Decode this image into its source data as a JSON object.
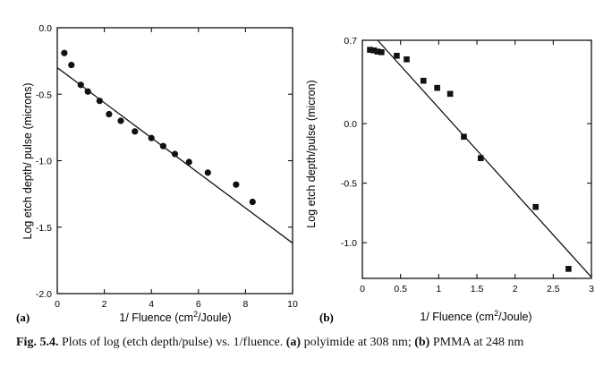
{
  "caption": {
    "fig_label": "Fig. 5.4.",
    "text_1": " Plots of log (etch depth/pulse) vs. 1/fluence. ",
    "label_a": "(a)",
    "text_2": " polyimide at 308 nm; ",
    "label_b": "(b)",
    "text_3": " PMMA at 248 nm"
  },
  "chart_data": [
    {
      "type": "scatter",
      "panel_label": "(a)",
      "xlabel": "1/ Fluence (cm",
      "xlabel_sup": "2",
      "xlabel_tail": "/Joule)",
      "ylabel": "Log etch depth/ pulse (microns)",
      "xlim": [
        0,
        10
      ],
      "ylim": [
        -2.0,
        0.0
      ],
      "x_ticks": [
        0,
        2,
        4,
        6,
        8,
        10
      ],
      "x_tick_labels": [
        "0",
        "2",
        "4",
        "6",
        "8",
        "10"
      ],
      "y_ticks": [
        0.0,
        -0.5,
        -1.0,
        -1.5,
        -2.0
      ],
      "y_tick_labels": [
        "0.0",
        "-0.5",
        "-1.0",
        "-1.5",
        "-2.0"
      ],
      "marker": "circle",
      "grid": false,
      "points": [
        {
          "x": 0.3,
          "y": -0.19
        },
        {
          "x": 0.6,
          "y": -0.28
        },
        {
          "x": 1.0,
          "y": -0.43
        },
        {
          "x": 1.3,
          "y": -0.48
        },
        {
          "x": 1.8,
          "y": -0.55
        },
        {
          "x": 2.2,
          "y": -0.65
        },
        {
          "x": 2.7,
          "y": -0.7
        },
        {
          "x": 3.3,
          "y": -0.78
        },
        {
          "x": 4.0,
          "y": -0.83
        },
        {
          "x": 4.5,
          "y": -0.89
        },
        {
          "x": 5.0,
          "y": -0.95
        },
        {
          "x": 5.6,
          "y": -1.01
        },
        {
          "x": 6.4,
          "y": -1.09
        },
        {
          "x": 7.6,
          "y": -1.18
        },
        {
          "x": 8.3,
          "y": -1.31
        }
      ],
      "fit_line": {
        "x": [
          0,
          10
        ],
        "y": [
          -0.3,
          -1.62
        ]
      }
    },
    {
      "type": "scatter",
      "panel_label": "(b)",
      "xlabel": "1/ Fluence (cm",
      "xlabel_sup": "2",
      "xlabel_tail": "/Joule)",
      "ylabel": "Log etch depth/pulse (micron)",
      "xlim": [
        0,
        3
      ],
      "ylim": [
        -1.3,
        0.7
      ],
      "x_ticks": [
        0,
        0.5,
        1,
        1.5,
        2,
        2.5,
        3
      ],
      "x_tick_labels": [
        "0",
        "0.5",
        "1",
        "1.5",
        "2",
        "2.5",
        "3"
      ],
      "y_ticks": [
        0.7,
        0.0,
        -0.5,
        -1.0
      ],
      "y_tick_labels": [
        "0.7",
        "0.0",
        "-0.5",
        "-1.0"
      ],
      "marker": "square",
      "grid": false,
      "points": [
        {
          "x": 0.1,
          "y": 0.62
        },
        {
          "x": 0.15,
          "y": 0.615
        },
        {
          "x": 0.2,
          "y": 0.605
        },
        {
          "x": 0.25,
          "y": 0.6
        },
        {
          "x": 0.45,
          "y": 0.57
        },
        {
          "x": 0.58,
          "y": 0.54
        },
        {
          "x": 0.8,
          "y": 0.36
        },
        {
          "x": 0.98,
          "y": 0.3
        },
        {
          "x": 1.15,
          "y": 0.25
        },
        {
          "x": 1.33,
          "y": -0.11
        },
        {
          "x": 1.55,
          "y": -0.29
        },
        {
          "x": 2.27,
          "y": -0.7
        },
        {
          "x": 2.7,
          "y": -1.22
        }
      ],
      "fit_line": {
        "x": [
          0.2,
          3.0
        ],
        "y": [
          0.7,
          -1.29
        ]
      }
    }
  ]
}
